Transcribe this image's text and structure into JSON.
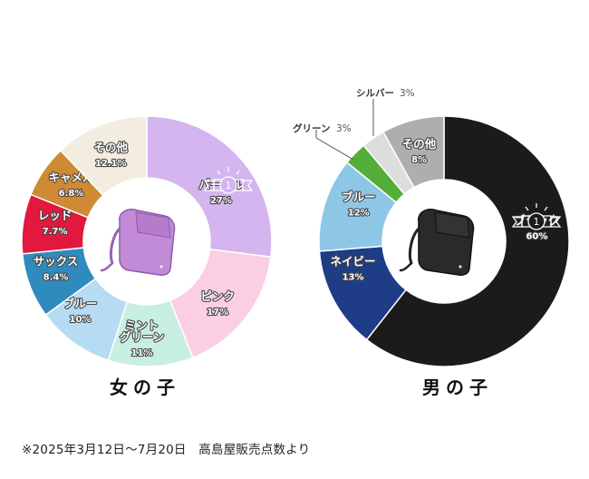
{
  "chart_data": [
    {
      "type": "pie",
      "title": "女の子",
      "series": [
        {
          "label": "パープル",
          "value": 27,
          "value_text": "27%",
          "color": "#d4b5f0"
        },
        {
          "label": "ピンク",
          "value": 17,
          "value_text": "17%",
          "color": "#fbcfe3"
        },
        {
          "label": "ミント\nグリーン",
          "value": 11,
          "value_text": "11%",
          "color": "#c7efe2"
        },
        {
          "label": "ブルー",
          "value": 10,
          "value_text": "10%",
          "color": "#b5dcf3"
        },
        {
          "label": "サックス",
          "value": 8.4,
          "value_text": "8.4%",
          "color": "#2f8bbd"
        },
        {
          "label": "レッド",
          "value": 7.7,
          "value_text": "7.7%",
          "color": "#e2183e"
        },
        {
          "label": "キャメル",
          "value": 6.8,
          "value_text": "6.8%",
          "color": "#cf8a33"
        },
        {
          "label": "その他",
          "value": 12.1,
          "value_text": "12.1%",
          "color": "#f3ede0"
        }
      ]
    },
    {
      "type": "pie",
      "title": "男の子",
      "series": [
        {
          "label": "ブラック",
          "value": 60,
          "value_text": "60%",
          "color": "#1b1b1b"
        },
        {
          "label": "ネイビー",
          "value": 13,
          "value_text": "13%",
          "color": "#1e3d86"
        },
        {
          "label": "ブルー",
          "value": 12,
          "value_text": "12%",
          "color": "#8ec7e6"
        },
        {
          "label": "グリーン",
          "value": 3,
          "value_text": "3%",
          "color": "#54ad3a"
        },
        {
          "label": "シルバー",
          "value": 3,
          "value_text": "3%",
          "color": "#dddddd"
        },
        {
          "label": "その他",
          "value": 8,
          "value_text": "8%",
          "color": "#aeaeae"
        }
      ]
    }
  ],
  "badge_number": "1",
  "footnote": "※2025年3月12日〜7月20日　高島屋販売点数より"
}
